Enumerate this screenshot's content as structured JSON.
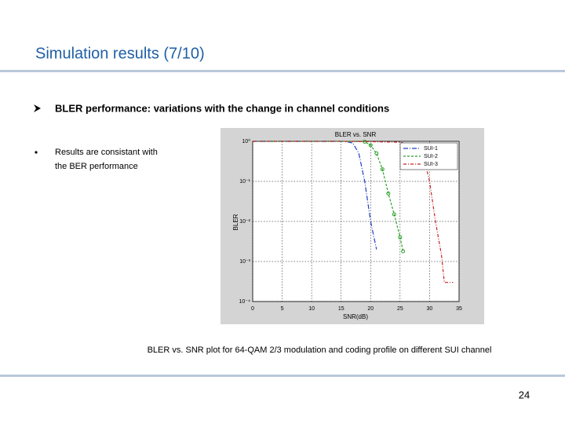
{
  "header": {
    "title": "Simulation results  (7/10)"
  },
  "bullets": [
    {
      "text": "BLER performance: variations with the change in channel conditions"
    },
    {
      "lines": [
        "Results are consistant with",
        "the BER performance"
      ]
    }
  ],
  "chart_data": {
    "type": "line",
    "title": "BLER vs. SNR",
    "x_label": "SNR(dB)",
    "y_label": "BLER",
    "log_y": true,
    "grid": true,
    "xlim": [
      0,
      35
    ],
    "xticks": [
      0,
      5,
      10,
      15,
      20,
      25,
      30,
      35
    ],
    "ylim": [
      0.0001,
      1
    ],
    "yticks": [
      {
        "value": 1,
        "label": "10⁰"
      },
      {
        "value": 0.1,
        "label": "10⁻¹"
      },
      {
        "value": 0.01,
        "label": "10⁻²"
      },
      {
        "value": 0.001,
        "label": "10⁻³"
      },
      {
        "value": 0.0001,
        "label": "10⁻⁴"
      }
    ],
    "series": [
      {
        "name": "SUI-1",
        "color": "#1f3fbf",
        "x": [
          0,
          5,
          10,
          15,
          16,
          17,
          18,
          19,
          20,
          21
        ],
        "values": [
          1,
          1,
          1,
          1,
          0.98,
          0.9,
          0.5,
          0.1,
          0.01,
          0.002
        ]
      },
      {
        "name": "SUI-2",
        "color": "#2aa02a",
        "x": [
          0,
          5,
          10,
          15,
          19,
          20,
          21,
          22,
          23,
          24,
          25,
          25.5
        ],
        "values": [
          1,
          1,
          1,
          1,
          0.98,
          0.8,
          0.5,
          0.2,
          0.05,
          0.015,
          0.004,
          0.0018
        ]
      },
      {
        "name": "SUI-3",
        "color": "#c8201e",
        "x": [
          0,
          5,
          10,
          15,
          20,
          25,
          27,
          28.5,
          29.5,
          30,
          31,
          32,
          32.5,
          34
        ],
        "values": [
          1,
          1,
          1,
          1,
          0.98,
          0.95,
          0.8,
          0.5,
          0.2,
          0.1,
          0.01,
          0.0015,
          0.0003,
          0.0003
        ]
      }
    ]
  },
  "caption": "BLER vs. SNR plot for 64-QAM 2/3 modulation and coding profile on different SUI channel",
  "page_number": "24"
}
